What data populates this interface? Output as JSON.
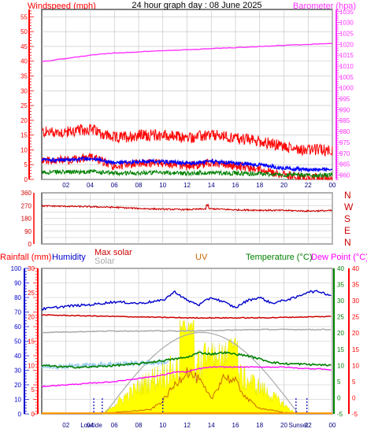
{
  "page": {
    "title": "24 hour graph day : 08 June 2025"
  },
  "colors": {
    "windspeed": "#ff0000",
    "gust_bg": "#ff0000",
    "avg_wind": "#0000ff",
    "low_wind": "#008000",
    "barometer": "#ff33ff",
    "direction": "#cc0000",
    "rainfall": "#ff0000",
    "humidity": "#0000cc",
    "max_solar": "#cc0000",
    "solar": "#aaaaaa",
    "uv": "#cc6600",
    "temperature": "#008000",
    "dew_point": "#ff00ff",
    "grid": "#c0c0c0"
  },
  "labels": {
    "windspeed": "Windspeed (mph)",
    "barometer": "Barometer (hpa)",
    "rainfall": "Rainfall (mm)",
    "humidity": "Humidity",
    "max_solar": "Max solar",
    "solar": "Solar",
    "uv": "UV",
    "temperature": "Temperature (°C)",
    "dew_point": "Dew Point (°C)",
    "lowtide": "Lowtide",
    "sunset": "Sunset"
  },
  "directions": [
    "N",
    "W",
    "S",
    "E",
    "N"
  ],
  "chart_data": [
    {
      "type": "line",
      "x_ticks": [
        "02",
        "04",
        "06",
        "08",
        "10",
        "12",
        "14",
        "16",
        "18",
        "20",
        "22",
        "00"
      ],
      "y_left": {
        "label": "Windspeed (mph)",
        "range": [
          0,
          57.5
        ],
        "ticks": [
          0,
          5,
          10,
          15,
          20,
          25,
          30,
          35,
          40,
          45,
          50,
          55
        ]
      },
      "y_right": {
        "label": "Barometer (hpa)",
        "range": [
          958,
          1036
        ],
        "ticks": [
          960,
          965,
          970,
          975,
          980,
          985,
          990,
          995,
          1000,
          1005,
          1010,
          1015,
          1020,
          1025,
          1030,
          1035
        ]
      },
      "series": [
        {
          "name": "Windspeed (mph)",
          "points": [
            [
              0,
              12
            ],
            [
              2,
              12
            ],
            [
              4,
              13
            ],
            [
              6,
              10
            ],
            [
              8,
              11
            ],
            [
              10,
              11
            ],
            [
              12,
              10
            ],
            [
              14,
              11
            ],
            [
              16,
              10
            ],
            [
              18,
              9
            ],
            [
              20,
              7
            ],
            [
              22,
              6
            ],
            [
              24,
              6
            ]
          ]
        },
        {
          "name": "Barometer (hpa)",
          "points": [
            [
              0,
              1012
            ],
            [
              2,
              1013.5
            ],
            [
              4,
              1015
            ],
            [
              6,
              1016
            ],
            [
              8,
              1016.5
            ],
            [
              10,
              1017
            ],
            [
              12,
              1017.5
            ],
            [
              14,
              1018
            ],
            [
              16,
              1018.5
            ],
            [
              18,
              1019
            ],
            [
              20,
              1019.5
            ],
            [
              22,
              1020
            ],
            [
              24,
              1020.5
            ]
          ]
        }
      ]
    },
    {
      "type": "line",
      "x_ticks": [
        "02",
        "04",
        "06",
        "08",
        "10",
        "12",
        "14",
        "16",
        "18",
        "20",
        "22",
        "00"
      ],
      "y_left": {
        "range": [
          0,
          360
        ],
        "ticks": [
          0,
          45,
          90,
          135,
          180,
          225,
          270,
          315,
          360
        ],
        "tick_labels": [
          "0",
          "90",
          "180",
          "270",
          "360"
        ]
      },
      "y_right": {
        "tick_labels": [
          "N",
          "W",
          "S",
          "E",
          "N"
        ]
      },
      "series": [
        {
          "name": "Wind direction",
          "points": [
            [
              0,
              268
            ],
            [
              2,
              265
            ],
            [
              4,
              262
            ],
            [
              6,
              258
            ],
            [
              8,
              250
            ],
            [
              10,
              245
            ],
            [
              12,
              242
            ],
            [
              14,
              248
            ],
            [
              16,
              240
            ],
            [
              18,
              238
            ],
            [
              20,
              236
            ],
            [
              22,
              232
            ],
            [
              24,
              235
            ]
          ]
        }
      ]
    },
    {
      "type": "line",
      "x_ticks": [
        "02",
        "04",
        "06",
        "08",
        "10",
        "12",
        "14",
        "16",
        "18",
        "20",
        "22",
        "00"
      ],
      "axes": {
        "humidity": {
          "label": "Humidity",
          "range": [
            0,
            100
          ],
          "ticks": [
            0,
            10,
            20,
            30,
            40,
            50,
            60,
            70,
            80,
            90,
            100
          ]
        },
        "rainfall": {
          "label": "Rainfall (mm)",
          "range": [
            0,
            30
          ],
          "ticks": [
            0,
            5,
            10,
            15,
            20,
            25,
            30
          ]
        },
        "temperature": {
          "label": "Temperature (°C)",
          "range": [
            -5,
            40
          ],
          "ticks": [
            -5,
            0,
            5,
            10,
            15,
            20,
            25,
            30,
            35,
            40
          ]
        },
        "dew_point": {
          "label": "Dew Point (°C)",
          "range": [
            -5,
            40
          ],
          "ticks": [
            -5,
            0,
            5,
            10,
            15,
            20,
            25,
            30,
            35,
            40
          ]
        }
      },
      "series": [
        {
          "name": "Humidity",
          "axis": "humidity",
          "points": [
            [
              0,
              72
            ],
            [
              2,
              74
            ],
            [
              4,
              75
            ],
            [
              6,
              77
            ],
            [
              8,
              76
            ],
            [
              10,
              78
            ],
            [
              11,
              84
            ],
            [
              12,
              78
            ],
            [
              13,
              75
            ],
            [
              14,
              80
            ],
            [
              15,
              77
            ],
            [
              16,
              73
            ],
            [
              17,
              78
            ],
            [
              18,
              80
            ],
            [
              19,
              76
            ],
            [
              20,
              78
            ],
            [
              21,
              80
            ],
            [
              22,
              84
            ],
            [
              23,
              84
            ],
            [
              24,
              81
            ]
          ]
        },
        {
          "name": "Temperature (°C)",
          "axis": "temperature",
          "points": [
            [
              0,
              10
            ],
            [
              2,
              9.5
            ],
            [
              4,
              9.5
            ],
            [
              6,
              10
            ],
            [
              8,
              10.5
            ],
            [
              10,
              11.5
            ],
            [
              11,
              12
            ],
            [
              12,
              12.5
            ],
            [
              13,
              14
            ],
            [
              14,
              13.5
            ],
            [
              15,
              14
            ],
            [
              16,
              13.5
            ],
            [
              17,
              13
            ],
            [
              18,
              12
            ],
            [
              19,
              11
            ],
            [
              20,
              10.5
            ],
            [
              21,
              10.5
            ],
            [
              22,
              10.3
            ],
            [
              23,
              10.2
            ],
            [
              24,
              10
            ]
          ]
        },
        {
          "name": "Dew Point (°C)",
          "axis": "dew_point",
          "points": [
            [
              0,
              3.5
            ],
            [
              2,
              4
            ],
            [
              4,
              4.5
            ],
            [
              6,
              5
            ],
            [
              8,
              6
            ],
            [
              10,
              7
            ],
            [
              11,
              8
            ],
            [
              12,
              8
            ],
            [
              13,
              9
            ],
            [
              14,
              9.5
            ],
            [
              15,
              9.5
            ],
            [
              16,
              9.5
            ],
            [
              17,
              9.5
            ],
            [
              18,
              9.5
            ],
            [
              19,
              9.5
            ],
            [
              20,
              9.5
            ],
            [
              21,
              9.2
            ],
            [
              22,
              9
            ],
            [
              23,
              9
            ],
            [
              24,
              8.5
            ]
          ]
        },
        {
          "name": "Max solar",
          "axis": "humidity",
          "points": [
            [
              0,
              68
            ],
            [
              6,
              67
            ],
            [
              12,
              66
            ],
            [
              18,
              66
            ],
            [
              24,
              67
            ]
          ]
        },
        {
          "name": "Solar",
          "axis": "humidity",
          "points": [
            [
              0,
              56
            ],
            [
              6,
              57
            ],
            [
              12,
              57
            ],
            [
              18,
              58
            ],
            [
              24,
              58
            ]
          ]
        },
        {
          "name": "UV",
          "axis": "humidity",
          "points": [
            [
              0,
              0
            ],
            [
              6,
              1
            ],
            [
              9,
              3
            ],
            [
              10,
              9
            ],
            [
              11,
              20
            ],
            [
              12,
              30
            ],
            [
              13,
              23
            ],
            [
              14,
              10
            ],
            [
              15,
              26
            ],
            [
              16,
              22
            ],
            [
              17,
              10
            ],
            [
              18,
              4
            ],
            [
              20,
              1
            ],
            [
              24,
              0
            ]
          ]
        }
      ],
      "annotations": [
        "Lowtide",
        "Sunset"
      ]
    }
  ]
}
